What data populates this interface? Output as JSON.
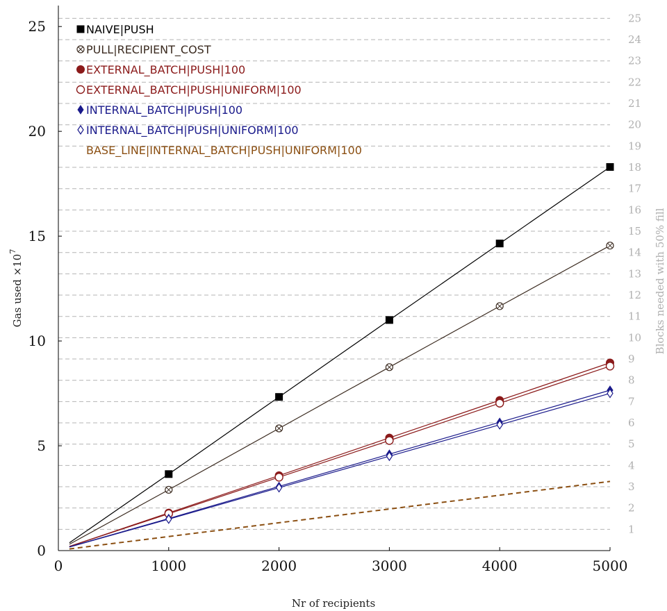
{
  "chart_data": {
    "type": "line",
    "xlabel": "Nr of recipients",
    "ylabel": "Gas used ×10",
    "ylabel_exponent": "7",
    "y2label": "Blocks needed with 50% fill",
    "xlim": [
      0,
      5000
    ],
    "ylim": [
      0,
      26
    ],
    "y2lim": [
      0,
      25.6
    ],
    "xticks": [
      0,
      1000,
      2000,
      3000,
      4000,
      5000
    ],
    "yticks": [
      0,
      5,
      10,
      15,
      20,
      25
    ],
    "y2ticks": [
      1,
      2,
      3,
      4,
      5,
      6,
      7,
      8,
      9,
      10,
      11,
      12,
      13,
      14,
      15,
      16,
      17,
      18,
      19,
      20,
      21,
      22,
      23,
      24,
      25
    ],
    "grid": "horizontal-dashed-right-axis",
    "legend_position": "top-left",
    "series": [
      {
        "name": "NAIVE|PUSH",
        "color": "#000000",
        "marker": "square-filled",
        "line": "solid",
        "x": [
          100,
          1000,
          2000,
          3000,
          4000,
          5000
        ],
        "values": [
          0.37,
          3.65,
          7.33,
          11.0,
          14.65,
          18.3
        ]
      },
      {
        "name": "PULL|RECIPIENT_COST",
        "color": "#3b2b20",
        "marker": "circle-cross",
        "line": "solid",
        "x": [
          100,
          1000,
          2000,
          3000,
          4000,
          5000
        ],
        "values": [
          0.3,
          2.9,
          5.83,
          8.75,
          11.66,
          14.55
        ]
      },
      {
        "name": "EXTERNAL_BATCH|PUSH|100",
        "color": "#8b1a1a",
        "marker": "circle-filled",
        "line": "solid",
        "x": [
          100,
          1000,
          2000,
          3000,
          4000,
          5000
        ],
        "values": [
          0.2,
          1.8,
          3.58,
          5.38,
          7.17,
          8.96
        ]
      },
      {
        "name": "EXTERNAL_BATCH|PUSH|UNIFORM|100",
        "color": "#8b1a1a",
        "marker": "circle-open",
        "line": "solid",
        "x": [
          100,
          1000,
          2000,
          3000,
          4000,
          5000
        ],
        "values": [
          0.2,
          1.76,
          3.5,
          5.25,
          7.03,
          8.8
        ]
      },
      {
        "name": "INTERNAL_BATCH|PUSH|100",
        "color": "#1a1a8b",
        "marker": "diamond-filled",
        "line": "solid",
        "x": [
          100,
          1000,
          2000,
          3000,
          4000,
          5000
        ],
        "values": [
          0.18,
          1.53,
          3.06,
          4.6,
          6.12,
          7.65
        ]
      },
      {
        "name": "INTERNAL_BATCH|PUSH|UNIFORM|100",
        "color": "#1a1a8b",
        "marker": "diamond-open",
        "line": "solid",
        "x": [
          100,
          1000,
          2000,
          3000,
          4000,
          5000
        ],
        "values": [
          0.17,
          1.5,
          3.0,
          4.5,
          6.0,
          7.5
        ]
      },
      {
        "name": "BASE_LINE|INTERNAL_BATCH|PUSH|UNIFORM|100",
        "color": "#8b4f12",
        "marker": "none",
        "line": "dashed",
        "x": [
          100,
          5000
        ],
        "values": [
          0.08,
          3.3
        ]
      }
    ]
  }
}
